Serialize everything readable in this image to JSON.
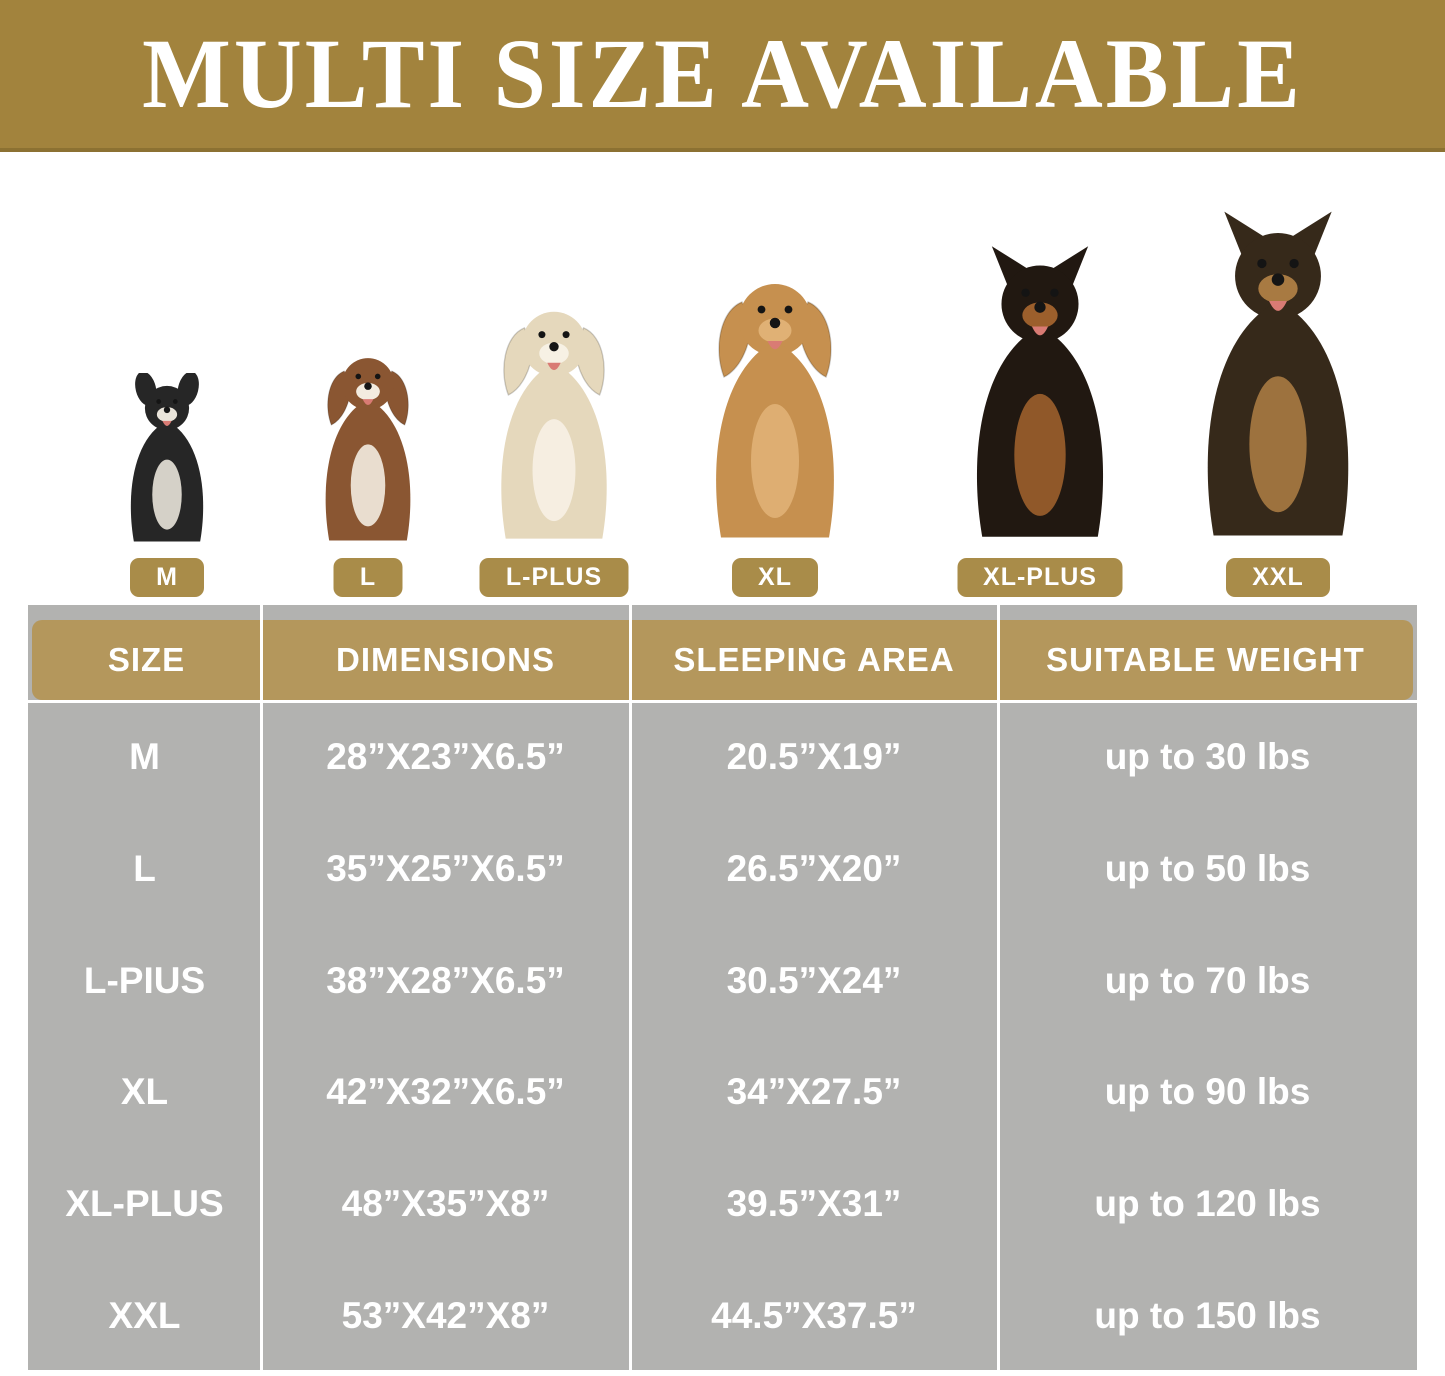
{
  "banner": {
    "title": "MULTI SIZE AVAILABLE"
  },
  "dogs": [
    {
      "label": "M",
      "breed": "french-bulldog",
      "ears": "bat",
      "art_height": 175,
      "colors": {
        "body": "#262626",
        "accent": "#e9e4da"
      }
    },
    {
      "label": "L",
      "breed": "beagle",
      "ears": "floppy",
      "art_height": 205,
      "colors": {
        "body": "#8a5632",
        "accent": "#f3ece0"
      }
    },
    {
      "label": "L-PLUS",
      "breed": "golden-retriever-cream",
      "ears": "floppy",
      "art_height": 255,
      "colors": {
        "body": "#e5d8bc",
        "accent": "#f7f1e4"
      }
    },
    {
      "label": "XL",
      "breed": "golden-retriever",
      "ears": "floppy",
      "art_height": 285,
      "colors": {
        "body": "#c6904f",
        "accent": "#e0b175"
      }
    },
    {
      "label": "XL-PLUS",
      "breed": "doberman",
      "ears": "pointy",
      "art_height": 305,
      "colors": {
        "body": "#211811",
        "accent": "#9c5f2c"
      }
    },
    {
      "label": "XXL",
      "breed": "german-shepherd",
      "ears": "pointy",
      "art_height": 340,
      "colors": {
        "body": "#36291a",
        "accent": "#a87a42"
      }
    }
  ],
  "table": {
    "headers": [
      "SIZE",
      "DIMENSIONS",
      "SLEEPING AREA",
      "SUITABLE WEIGHT"
    ],
    "rows": [
      {
        "size": "M",
        "dimensions": "28”X23”X6.5”",
        "sleeping_area": "20.5”X19”",
        "weight": "up to 30 lbs"
      },
      {
        "size": "L",
        "dimensions": "35”X25”X6.5”",
        "sleeping_area": "26.5”X20”",
        "weight": "up to 50 lbs"
      },
      {
        "size": "L-PIUS",
        "dimensions": "38”X28”X6.5”",
        "sleeping_area": "30.5”X24”",
        "weight": "up to 70 lbs"
      },
      {
        "size": "XL",
        "dimensions": "42”X32”X6.5”",
        "sleeping_area": "34”X27.5”",
        "weight": "up to 90 lbs"
      },
      {
        "size": "XL-PLUS",
        "dimensions": "48”X35”X8”",
        "sleeping_area": "39.5”X31”",
        "weight": "up to 120 lbs"
      },
      {
        "size": "XXL",
        "dimensions": "53”X42”X8”",
        "sleeping_area": "44.5”X37.5”",
        "weight": "up to 150 lbs"
      }
    ]
  },
  "colors": {
    "banner_bg": "#A2833D",
    "banner_border": "#8C7132",
    "header_bg": "#B4975C",
    "badge_bg": "#A98C49",
    "table_bg": "#B2B2B0",
    "divider": "#FFFFFF",
    "text": "#FFFFFF"
  }
}
